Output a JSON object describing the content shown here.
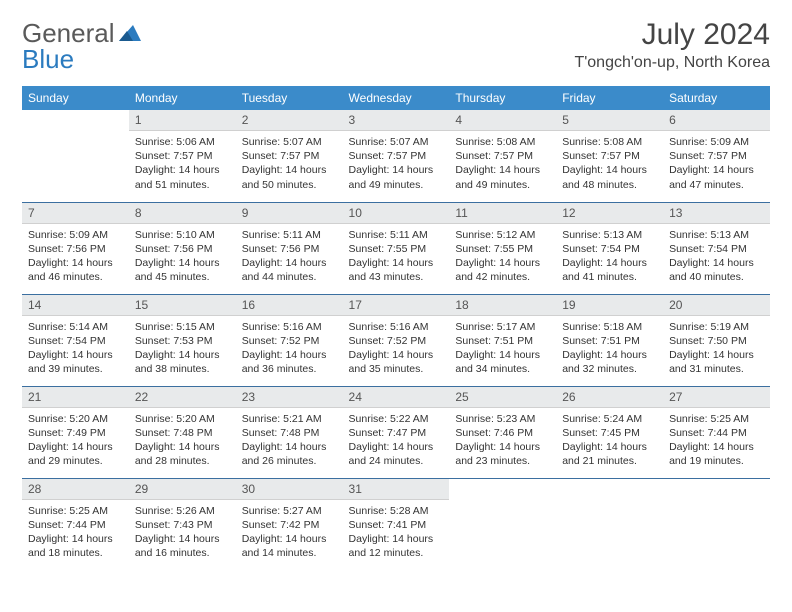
{
  "logo": {
    "text1": "General",
    "text2": "Blue"
  },
  "title": "July 2024",
  "location": "T'ongch'on-up, North Korea",
  "colors": {
    "header_bg": "#3b8bca",
    "header_text": "#ffffff",
    "daynum_bg": "#e8eaeb",
    "row_border": "#3b6fa0",
    "logo_accent": "#2b7bbf",
    "text": "#333333",
    "background": "#ffffff"
  },
  "weekdays": [
    "Sunday",
    "Monday",
    "Tuesday",
    "Wednesday",
    "Thursday",
    "Friday",
    "Saturday"
  ],
  "weeks": [
    [
      {
        "day": "",
        "sunrise": "",
        "sunset": "",
        "daylight": ""
      },
      {
        "day": "1",
        "sunrise": "Sunrise: 5:06 AM",
        "sunset": "Sunset: 7:57 PM",
        "daylight": "Daylight: 14 hours and 51 minutes."
      },
      {
        "day": "2",
        "sunrise": "Sunrise: 5:07 AM",
        "sunset": "Sunset: 7:57 PM",
        "daylight": "Daylight: 14 hours and 50 minutes."
      },
      {
        "day": "3",
        "sunrise": "Sunrise: 5:07 AM",
        "sunset": "Sunset: 7:57 PM",
        "daylight": "Daylight: 14 hours and 49 minutes."
      },
      {
        "day": "4",
        "sunrise": "Sunrise: 5:08 AM",
        "sunset": "Sunset: 7:57 PM",
        "daylight": "Daylight: 14 hours and 49 minutes."
      },
      {
        "day": "5",
        "sunrise": "Sunrise: 5:08 AM",
        "sunset": "Sunset: 7:57 PM",
        "daylight": "Daylight: 14 hours and 48 minutes."
      },
      {
        "day": "6",
        "sunrise": "Sunrise: 5:09 AM",
        "sunset": "Sunset: 7:57 PM",
        "daylight": "Daylight: 14 hours and 47 minutes."
      }
    ],
    [
      {
        "day": "7",
        "sunrise": "Sunrise: 5:09 AM",
        "sunset": "Sunset: 7:56 PM",
        "daylight": "Daylight: 14 hours and 46 minutes."
      },
      {
        "day": "8",
        "sunrise": "Sunrise: 5:10 AM",
        "sunset": "Sunset: 7:56 PM",
        "daylight": "Daylight: 14 hours and 45 minutes."
      },
      {
        "day": "9",
        "sunrise": "Sunrise: 5:11 AM",
        "sunset": "Sunset: 7:56 PM",
        "daylight": "Daylight: 14 hours and 44 minutes."
      },
      {
        "day": "10",
        "sunrise": "Sunrise: 5:11 AM",
        "sunset": "Sunset: 7:55 PM",
        "daylight": "Daylight: 14 hours and 43 minutes."
      },
      {
        "day": "11",
        "sunrise": "Sunrise: 5:12 AM",
        "sunset": "Sunset: 7:55 PM",
        "daylight": "Daylight: 14 hours and 42 minutes."
      },
      {
        "day": "12",
        "sunrise": "Sunrise: 5:13 AM",
        "sunset": "Sunset: 7:54 PM",
        "daylight": "Daylight: 14 hours and 41 minutes."
      },
      {
        "day": "13",
        "sunrise": "Sunrise: 5:13 AM",
        "sunset": "Sunset: 7:54 PM",
        "daylight": "Daylight: 14 hours and 40 minutes."
      }
    ],
    [
      {
        "day": "14",
        "sunrise": "Sunrise: 5:14 AM",
        "sunset": "Sunset: 7:54 PM",
        "daylight": "Daylight: 14 hours and 39 minutes."
      },
      {
        "day": "15",
        "sunrise": "Sunrise: 5:15 AM",
        "sunset": "Sunset: 7:53 PM",
        "daylight": "Daylight: 14 hours and 38 minutes."
      },
      {
        "day": "16",
        "sunrise": "Sunrise: 5:16 AM",
        "sunset": "Sunset: 7:52 PM",
        "daylight": "Daylight: 14 hours and 36 minutes."
      },
      {
        "day": "17",
        "sunrise": "Sunrise: 5:16 AM",
        "sunset": "Sunset: 7:52 PM",
        "daylight": "Daylight: 14 hours and 35 minutes."
      },
      {
        "day": "18",
        "sunrise": "Sunrise: 5:17 AM",
        "sunset": "Sunset: 7:51 PM",
        "daylight": "Daylight: 14 hours and 34 minutes."
      },
      {
        "day": "19",
        "sunrise": "Sunrise: 5:18 AM",
        "sunset": "Sunset: 7:51 PM",
        "daylight": "Daylight: 14 hours and 32 minutes."
      },
      {
        "day": "20",
        "sunrise": "Sunrise: 5:19 AM",
        "sunset": "Sunset: 7:50 PM",
        "daylight": "Daylight: 14 hours and 31 minutes."
      }
    ],
    [
      {
        "day": "21",
        "sunrise": "Sunrise: 5:20 AM",
        "sunset": "Sunset: 7:49 PM",
        "daylight": "Daylight: 14 hours and 29 minutes."
      },
      {
        "day": "22",
        "sunrise": "Sunrise: 5:20 AM",
        "sunset": "Sunset: 7:48 PM",
        "daylight": "Daylight: 14 hours and 28 minutes."
      },
      {
        "day": "23",
        "sunrise": "Sunrise: 5:21 AM",
        "sunset": "Sunset: 7:48 PM",
        "daylight": "Daylight: 14 hours and 26 minutes."
      },
      {
        "day": "24",
        "sunrise": "Sunrise: 5:22 AM",
        "sunset": "Sunset: 7:47 PM",
        "daylight": "Daylight: 14 hours and 24 minutes."
      },
      {
        "day": "25",
        "sunrise": "Sunrise: 5:23 AM",
        "sunset": "Sunset: 7:46 PM",
        "daylight": "Daylight: 14 hours and 23 minutes."
      },
      {
        "day": "26",
        "sunrise": "Sunrise: 5:24 AM",
        "sunset": "Sunset: 7:45 PM",
        "daylight": "Daylight: 14 hours and 21 minutes."
      },
      {
        "day": "27",
        "sunrise": "Sunrise: 5:25 AM",
        "sunset": "Sunset: 7:44 PM",
        "daylight": "Daylight: 14 hours and 19 minutes."
      }
    ],
    [
      {
        "day": "28",
        "sunrise": "Sunrise: 5:25 AM",
        "sunset": "Sunset: 7:44 PM",
        "daylight": "Daylight: 14 hours and 18 minutes."
      },
      {
        "day": "29",
        "sunrise": "Sunrise: 5:26 AM",
        "sunset": "Sunset: 7:43 PM",
        "daylight": "Daylight: 14 hours and 16 minutes."
      },
      {
        "day": "30",
        "sunrise": "Sunrise: 5:27 AM",
        "sunset": "Sunset: 7:42 PM",
        "daylight": "Daylight: 14 hours and 14 minutes."
      },
      {
        "day": "31",
        "sunrise": "Sunrise: 5:28 AM",
        "sunset": "Sunset: 7:41 PM",
        "daylight": "Daylight: 14 hours and 12 minutes."
      },
      {
        "day": "",
        "sunrise": "",
        "sunset": "",
        "daylight": ""
      },
      {
        "day": "",
        "sunrise": "",
        "sunset": "",
        "daylight": ""
      },
      {
        "day": "",
        "sunrise": "",
        "sunset": "",
        "daylight": ""
      }
    ]
  ]
}
